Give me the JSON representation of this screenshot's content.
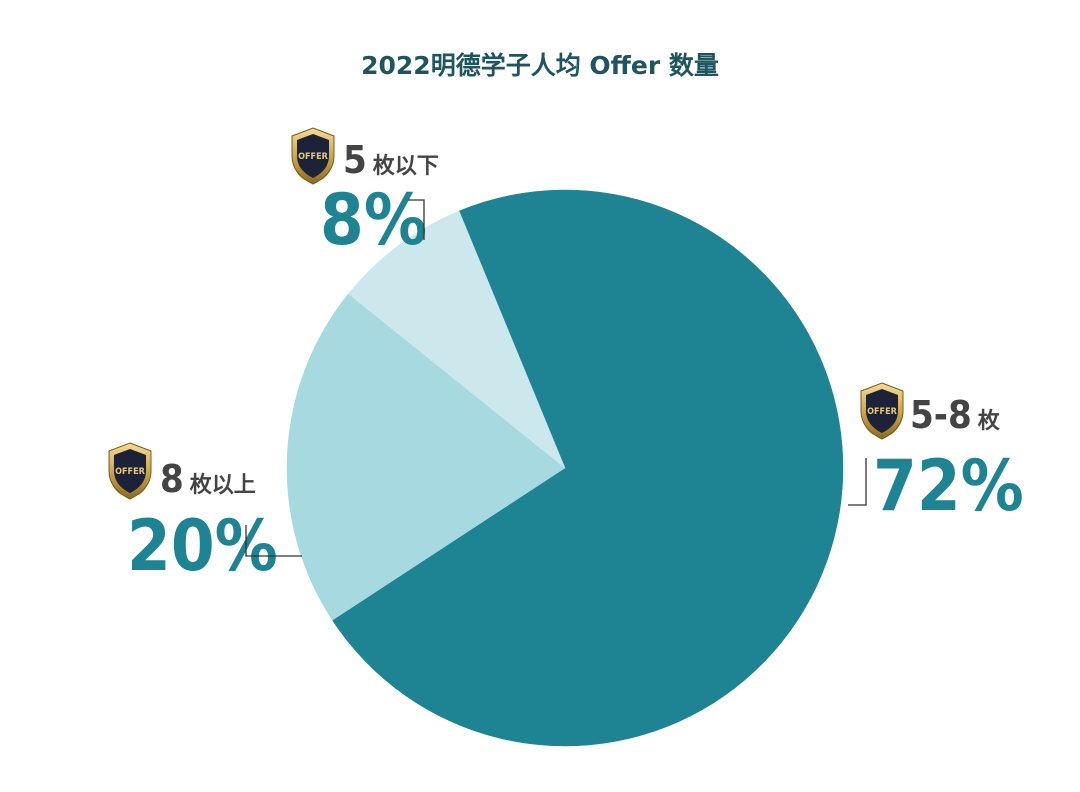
{
  "chart_data": {
    "type": "pie",
    "title": "2022明德学子人均 Offer 数量",
    "slices": [
      {
        "category_num": "5-8",
        "category_unit": "枚",
        "value": 72,
        "label": "72%",
        "color": "#1e8493"
      },
      {
        "category_num": "8",
        "category_unit": "枚以上",
        "value": 20,
        "label": "20%",
        "color": "#a6d9e0"
      },
      {
        "category_num": "5",
        "category_unit": "枚以下",
        "value": 8,
        "label": "8%",
        "color": "#cce8ed"
      }
    ]
  },
  "badge": {
    "text": "OFFER",
    "icon": "offer-shield-icon"
  }
}
